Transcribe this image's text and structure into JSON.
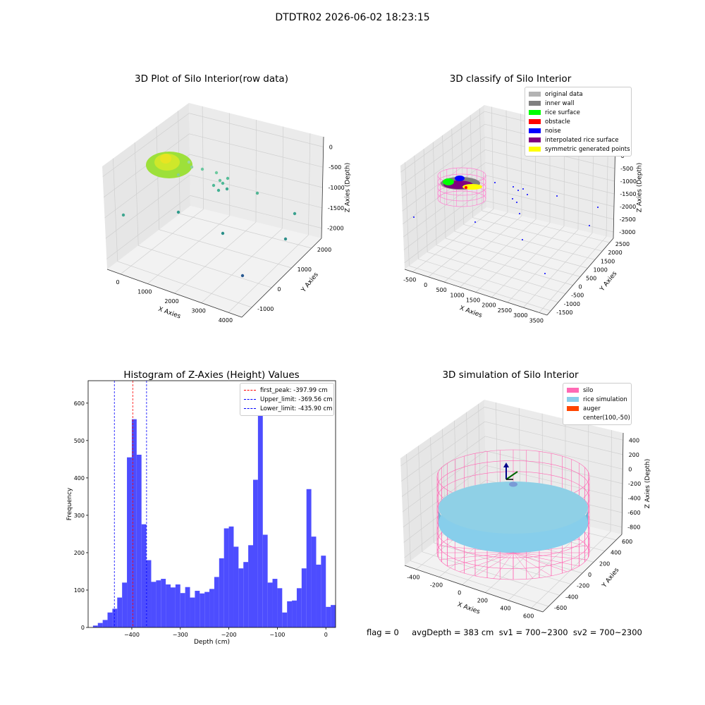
{
  "figure": {
    "suptitle": "DTDTR02 2026-06-02 18:23:15",
    "footer": "flag = 0     avgDepth = 383 cm  sv1 = 700~2300  sv2 = 700~2300"
  },
  "panels": {
    "raw": {
      "title": "3D Plot of Silo Interior(row data)",
      "xlabel": "X Axies",
      "ylabel": "Y Axies",
      "zlabel": "Z Axies (Depth)",
      "xticks": [
        "0",
        "1000",
        "2000",
        "3000",
        "4000"
      ],
      "yticks": [
        "-1000",
        "0",
        "1000",
        "2000"
      ],
      "zticks": [
        "0",
        "-500",
        "-1000",
        "-1500",
        "-2000"
      ]
    },
    "classify": {
      "title": "3D classify of Silo Interior",
      "xlabel": "X Axies",
      "ylabel": "Y Axies",
      "zlabel": "Z Axies (Depth)",
      "xticks": [
        "-500",
        "0",
        "500",
        "1000",
        "1500",
        "2000",
        "2500",
        "3000",
        "3500"
      ],
      "yticks": [
        "-1500",
        "-1000",
        "-500",
        "0",
        "500",
        "1000",
        "1500",
        "2000",
        "2500"
      ],
      "zticks": [
        "500",
        "0",
        "-500",
        "-1000",
        "-1500",
        "-2000",
        "-2500",
        "-3000"
      ],
      "zticks_partial": "500",
      "legend": [
        {
          "label": "original data",
          "color": "#b3b3b3"
        },
        {
          "label": "inner wall",
          "color": "#808080"
        },
        {
          "label": "rice surface",
          "color": "#00ff00"
        },
        {
          "label": "obstacle",
          "color": "#ff0000"
        },
        {
          "label": "noise",
          "color": "#0000ff"
        },
        {
          "label": "interpolated rice surface",
          "color": "#800080"
        },
        {
          "label": "symmetric generated points",
          "color": "#ffff00"
        }
      ]
    },
    "sim": {
      "title": "3D simulation of Silo Interior",
      "xlabel": "X Axies",
      "ylabel": "Y Axies",
      "zlabel": "Z Axies (Depth)",
      "xticks": [
        "-400",
        "-200",
        "0",
        "200",
        "400",
        "600"
      ],
      "yticks": [
        "-600",
        "-400",
        "-200",
        "0",
        "200",
        "400",
        "600"
      ],
      "zticks": [
        "400",
        "200",
        "0",
        "-200",
        "-400",
        "-600",
        "-800"
      ],
      "legend": [
        {
          "label": "silo",
          "color": "#ff69b4"
        },
        {
          "label": "rice simulation",
          "color": "#87ceeb"
        },
        {
          "label": "auger",
          "color": "#ff4500"
        },
        {
          "label": "center(100,-50)",
          "color": ""
        }
      ]
    }
  },
  "chart_data": [
    {
      "type": "scatter",
      "title": "3D Plot of Silo Interior(row data)",
      "xlabel": "X Axies",
      "ylabel": "Y Axies",
      "zlabel": "Z Axies (Depth)",
      "xlim": [
        -500,
        4000
      ],
      "ylim": [
        -1500,
        2500
      ],
      "zlim": [
        -2300,
        0
      ]
    },
    {
      "type": "scatter",
      "title": "3D classify of Silo Interior",
      "xlabel": "X Axies",
      "ylabel": "Y Axies",
      "zlabel": "Z Axies (Depth)",
      "xlim": [
        -500,
        3500
      ],
      "ylim": [
        -1500,
        2500
      ],
      "zlim": [
        -3000,
        500
      ],
      "series": [
        {
          "name": "original data"
        },
        {
          "name": "inner wall"
        },
        {
          "name": "rice surface"
        },
        {
          "name": "obstacle"
        },
        {
          "name": "noise"
        },
        {
          "name": "interpolated rice surface"
        },
        {
          "name": "symmetric generated points"
        }
      ]
    },
    {
      "type": "bar",
      "title": "Histogram of Z-Axies (Height) Values",
      "xlabel": "Depth (cm)",
      "ylabel": "Frequency",
      "xlim": [
        -490,
        20
      ],
      "ylim": [
        0,
        660
      ],
      "xticks": [
        -400,
        -300,
        -200,
        -100,
        0
      ],
      "yticks": [
        0,
        100,
        200,
        300,
        400,
        500,
        600
      ],
      "bin_start": -480,
      "bin_width": 10,
      "values": [
        5,
        12,
        20,
        40,
        50,
        80,
        120,
        455,
        557,
        462,
        276,
        180,
        122,
        126,
        130,
        115,
        107,
        115,
        92,
        108,
        80,
        98,
        91,
        95,
        103,
        135,
        185,
        265,
        270,
        216,
        158,
        175,
        220,
        395,
        627,
        248,
        120,
        130,
        105,
        40,
        70,
        72,
        105,
        158,
        370,
        243,
        168,
        192,
        55,
        60
      ],
      "vlines": [
        {
          "label": "first_peak: -397.99 cm",
          "x": -397.99,
          "color": "#ff0000"
        },
        {
          "label": "Upper_limit: -369.56 cm",
          "x": -369.56,
          "color": "#0000ff"
        },
        {
          "label": "Lower_limit: -435.90 cm",
          "x": -435.9,
          "color": "#0000ff"
        }
      ]
    },
    {
      "type": "scatter",
      "title": "3D simulation of Silo Interior",
      "xlabel": "X Axies",
      "ylabel": "Y Axies",
      "zlabel": "Z Axies (Depth)",
      "xlim": [
        -500,
        700
      ],
      "ylim": [
        -700,
        700
      ],
      "zlim": [
        -900,
        450
      ],
      "series": [
        {
          "name": "silo"
        },
        {
          "name": "rice simulation"
        },
        {
          "name": "auger"
        },
        {
          "name": "center(100,-50)"
        }
      ]
    }
  ]
}
